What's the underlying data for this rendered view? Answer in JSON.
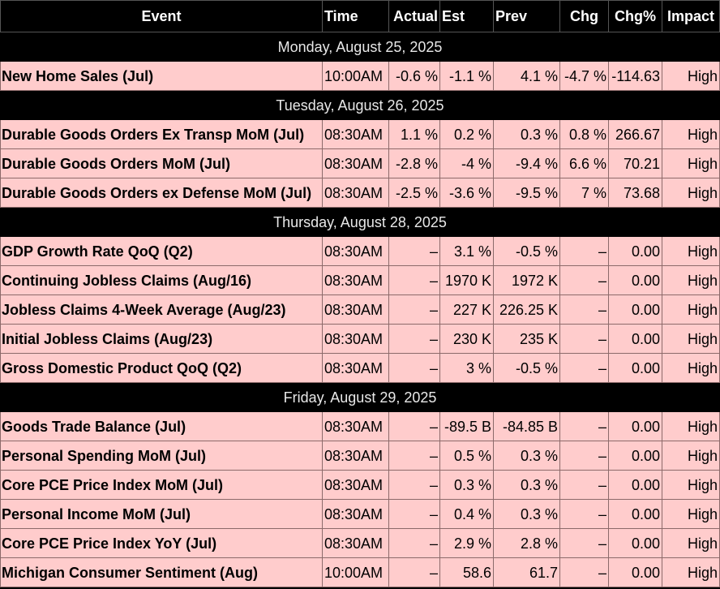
{
  "columns": {
    "event": "Event",
    "time": "Time",
    "actual": "Actual",
    "est": "Est",
    "prev": "Prev",
    "chg": "Chg",
    "chg_pct": "Chg%",
    "impact": "Impact"
  },
  "colors": {
    "header_bg": "#000000",
    "row_bg": "#ffcccc",
    "text": "#000000"
  },
  "days": [
    {
      "date": "Monday, August 25, 2025",
      "events": [
        {
          "name": "New Home Sales (Jul)",
          "time": "10:00AM",
          "actual": "-0.6 %",
          "est": "-1.1 %",
          "prev": "4.1 %",
          "chg": "-4.7 %",
          "chg_pct": "-114.63",
          "impact": "High"
        }
      ]
    },
    {
      "date": "Tuesday, August 26, 2025",
      "events": [
        {
          "name": "Durable Goods Orders Ex Transp MoM (Jul)",
          "time": "08:30AM",
          "actual": "1.1 %",
          "est": "0.2 %",
          "prev": "0.3 %",
          "chg": "0.8 %",
          "chg_pct": "266.67",
          "impact": "High"
        },
        {
          "name": "Durable Goods Orders MoM (Jul)",
          "time": "08:30AM",
          "actual": "-2.8 %",
          "est": "-4 %",
          "prev": "-9.4 %",
          "chg": "6.6 %",
          "chg_pct": "70.21",
          "impact": "High"
        },
        {
          "name": "Durable Goods Orders ex Defense MoM (Jul)",
          "time": "08:30AM",
          "actual": "-2.5 %",
          "est": "-3.6 %",
          "prev": "-9.5 %",
          "chg": "7 %",
          "chg_pct": "73.68",
          "impact": "High"
        }
      ]
    },
    {
      "date": "Thursday, August 28, 2025",
      "events": [
        {
          "name": "GDP Growth Rate QoQ (Q2)",
          "time": "08:30AM",
          "actual": "–",
          "est": "3.1 %",
          "prev": "-0.5 %",
          "chg": "–",
          "chg_pct": "0.00",
          "impact": "High"
        },
        {
          "name": "Continuing Jobless Claims (Aug/16)",
          "time": "08:30AM",
          "actual": "–",
          "est": "1970 K",
          "prev": "1972 K",
          "chg": "–",
          "chg_pct": "0.00",
          "impact": "High"
        },
        {
          "name": "Jobless Claims 4-Week Average (Aug/23)",
          "time": "08:30AM",
          "actual": "–",
          "est": "227 K",
          "prev": "226.25 K",
          "chg": "–",
          "chg_pct": "0.00",
          "impact": "High"
        },
        {
          "name": "Initial Jobless Claims (Aug/23)",
          "time": "08:30AM",
          "actual": "–",
          "est": "230 K",
          "prev": "235 K",
          "chg": "–",
          "chg_pct": "0.00",
          "impact": "High"
        },
        {
          "name": "Gross Domestic Product QoQ (Q2)",
          "time": "08:30AM",
          "actual": "–",
          "est": "3 %",
          "prev": "-0.5 %",
          "chg": "–",
          "chg_pct": "0.00",
          "impact": "High"
        }
      ]
    },
    {
      "date": "Friday, August 29, 2025",
      "events": [
        {
          "name": "Goods Trade Balance (Jul)",
          "time": "08:30AM",
          "actual": "–",
          "est": "-89.5 B",
          "prev": "-84.85 B",
          "chg": "–",
          "chg_pct": "0.00",
          "impact": "High"
        },
        {
          "name": "Personal Spending MoM (Jul)",
          "time": "08:30AM",
          "actual": "–",
          "est": "0.5 %",
          "prev": "0.3 %",
          "chg": "–",
          "chg_pct": "0.00",
          "impact": "High"
        },
        {
          "name": "Core PCE Price Index MoM (Jul)",
          "time": "08:30AM",
          "actual": "–",
          "est": "0.3 %",
          "prev": "0.3 %",
          "chg": "–",
          "chg_pct": "0.00",
          "impact": "High"
        },
        {
          "name": "Personal Income MoM (Jul)",
          "time": "08:30AM",
          "actual": "–",
          "est": "0.4 %",
          "prev": "0.3 %",
          "chg": "–",
          "chg_pct": "0.00",
          "impact": "High"
        },
        {
          "name": "Core PCE Price Index YoY (Jul)",
          "time": "08:30AM",
          "actual": "–",
          "est": "2.9 %",
          "prev": "2.8 %",
          "chg": "–",
          "chg_pct": "0.00",
          "impact": "High"
        },
        {
          "name": "Michigan Consumer Sentiment (Aug)",
          "time": "10:00AM",
          "actual": "–",
          "est": "58.6",
          "prev": "61.7",
          "chg": "–",
          "chg_pct": "0.00",
          "impact": "High"
        }
      ]
    }
  ]
}
